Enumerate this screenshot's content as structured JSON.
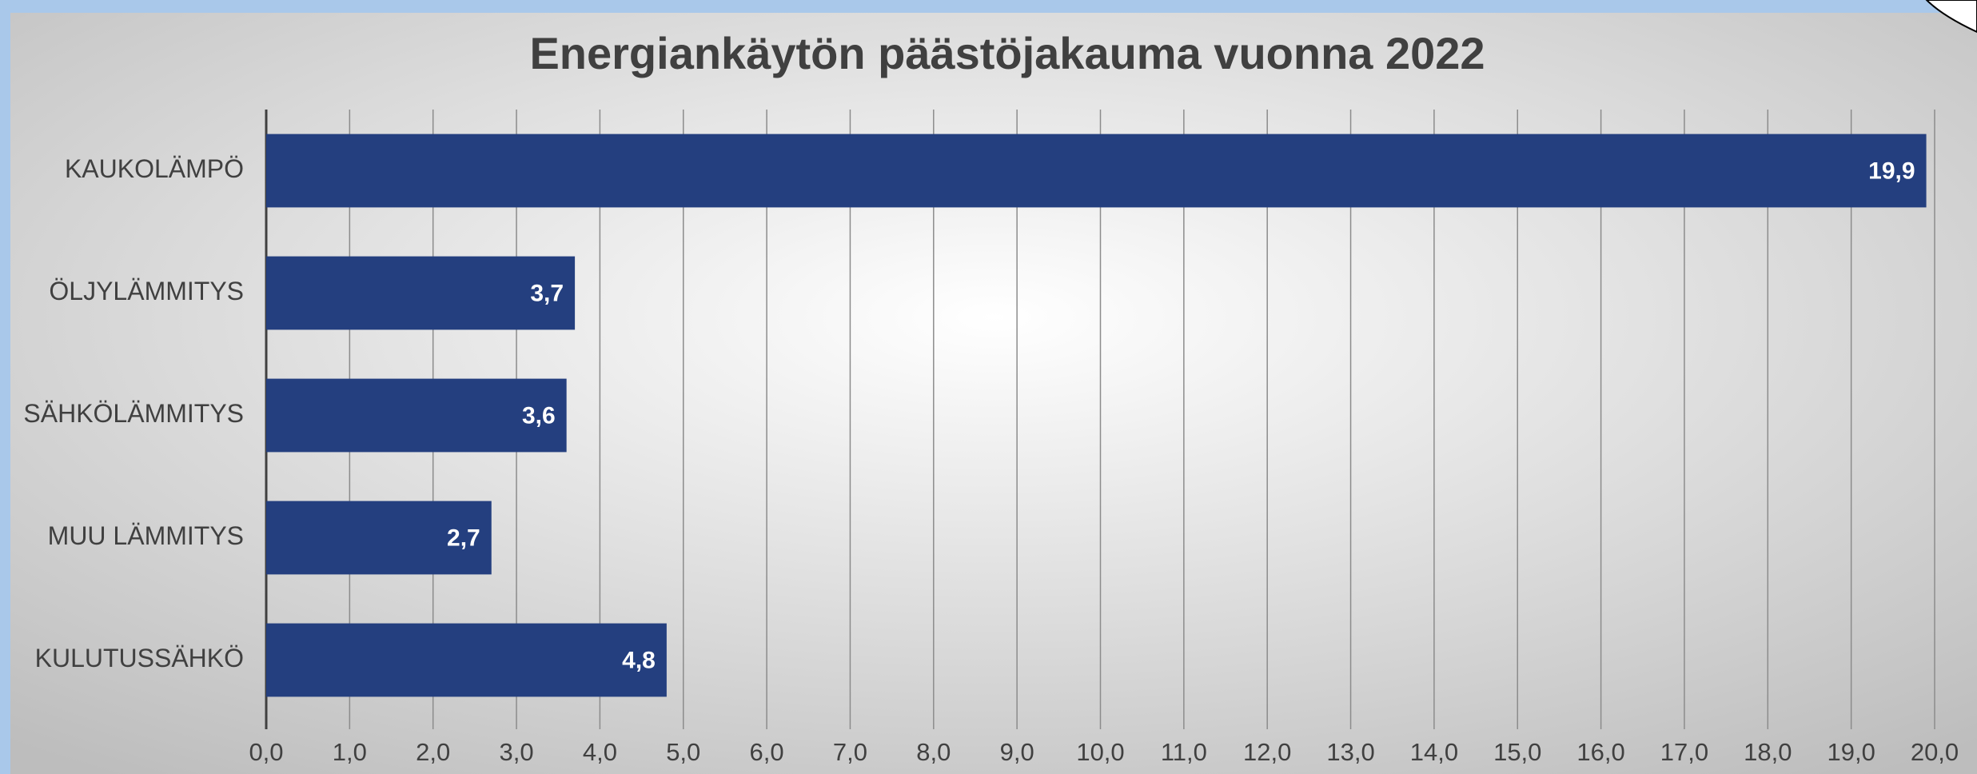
{
  "chart_data": {
    "type": "bar",
    "orientation": "horizontal",
    "title": "Energiankäytön päästöjakauma vuonna 2022",
    "categories": [
      "KAUKOLÄMPÖ",
      "ÖLJYLÄMMITYS",
      "SÄHKÖLÄMMITYS",
      "MUU LÄMMITYS",
      "KULUTUSSÄHKÖ"
    ],
    "values": [
      19.9,
      3.7,
      3.6,
      2.7,
      4.8
    ],
    "value_labels": [
      "19,9",
      "3,7",
      "3,6",
      "2,7",
      "4,8"
    ],
    "color": "#243f7f",
    "xlim": [
      0,
      20
    ],
    "xticks": [
      {
        "value": 0,
        "label": "0,0"
      },
      {
        "value": 1,
        "label": "1,0"
      },
      {
        "value": 2,
        "label": "2,0"
      },
      {
        "value": 3,
        "label": "3,0"
      },
      {
        "value": 4,
        "label": "4,0"
      },
      {
        "value": 5,
        "label": "5,0"
      },
      {
        "value": 6,
        "label": "6,0"
      },
      {
        "value": 7,
        "label": "7,0"
      },
      {
        "value": 8,
        "label": "8,0"
      },
      {
        "value": 9,
        "label": "9,0"
      },
      {
        "value": 10,
        "label": "10,0"
      },
      {
        "value": 11,
        "label": "11,0"
      },
      {
        "value": 12,
        "label": "12,0"
      },
      {
        "value": 13,
        "label": "13,0"
      },
      {
        "value": 14,
        "label": "14,0"
      },
      {
        "value": 15,
        "label": "15,0"
      },
      {
        "value": 16,
        "label": "16,0"
      },
      {
        "value": 17,
        "label": "17,0"
      },
      {
        "value": 18,
        "label": "18,0"
      },
      {
        "value": 19,
        "label": "19,0"
      },
      {
        "value": 20,
        "label": "20,0"
      }
    ],
    "grid": true
  }
}
